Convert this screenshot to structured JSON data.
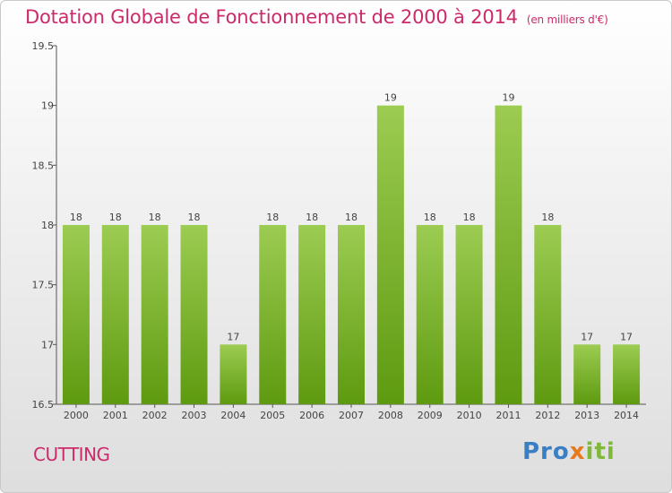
{
  "title": "Dotation Globale de Fonctionnement de 2000 à 2014",
  "subtitle": "(en milliers d'€)",
  "commune": "CUTTING",
  "logo": {
    "p1": "Pro",
    "p2": "x",
    "p3": "iti"
  },
  "colors": {
    "bar_top": "#9ccc52",
    "bar_bottom": "#5e9a10",
    "title": "#cc2a6a"
  },
  "chart_data": {
    "type": "bar",
    "title": "Dotation Globale de Fonctionnement de 2000 à 2014",
    "subtitle": "(en milliers d'€)",
    "categories": [
      "2000",
      "2001",
      "2002",
      "2003",
      "2004",
      "2005",
      "2006",
      "2007",
      "2008",
      "2009",
      "2010",
      "2011",
      "2012",
      "2013",
      "2014"
    ],
    "values": [
      18,
      18,
      18,
      18,
      17,
      18,
      18,
      18,
      19,
      18,
      18,
      19,
      18,
      17,
      17
    ],
    "ylim": [
      16.5,
      19.5
    ],
    "yticks": [
      "16.5",
      "17",
      "17.5",
      "18",
      "18.5",
      "19",
      "19.5"
    ],
    "grid": false,
    "legend": "none"
  }
}
